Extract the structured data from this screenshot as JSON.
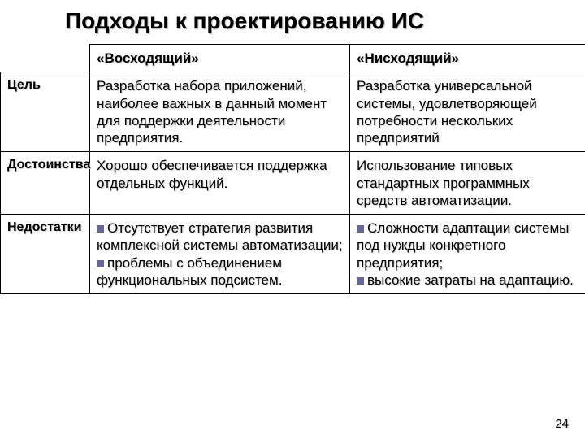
{
  "title": "Подходы к проектированию ИС",
  "header": {
    "colA": "«Восходящий»",
    "colB": "«Нисходящий»"
  },
  "rows": {
    "goal": {
      "label": "Цель",
      "a": "Разработка набора приложений, наиболее важных в данный момент для поддержки деятельности предприятия.",
      "b": "Разработка универсальной системы, удовлетворяющей потребности нескольких предприятий"
    },
    "pros": {
      "label": "Достоинства",
      "a": "Хорошо обеспечивается поддержка отдельных функций.",
      "b": "Использование типовых стандартных программных средств автоматизации."
    },
    "cons": {
      "label": "Недостатки",
      "a1": "Отсутствует стратегия развития комплексной системы автоматизации;",
      "a2": "проблемы с объединением функциональных подсистем.",
      "b1": "Сложности адаптации системы под нужды конкретного предприятия;",
      "b2": "высокие затраты на адаптацию."
    }
  },
  "pagenum": "24"
}
